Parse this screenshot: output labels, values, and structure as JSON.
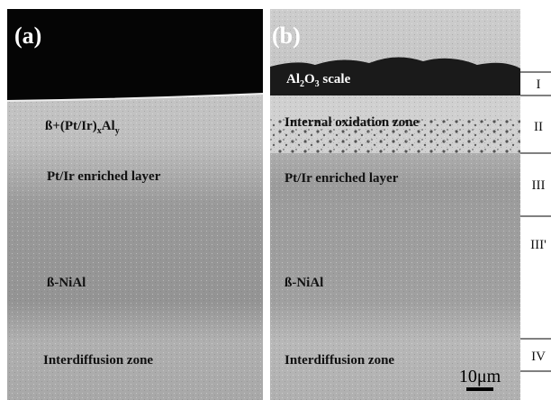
{
  "panels": [
    {
      "label": "(a)",
      "layers": [
        {
          "parts": [
            "ß+(Pt/Ir)",
            "x",
            "Al",
            "y"
          ]
        },
        {
          "parts": [
            "Pt/Ir enriched layer"
          ]
        },
        {
          "parts": [
            "ß-NiAl"
          ]
        },
        {
          "parts": [
            "Interdiffusion zone"
          ]
        }
      ]
    },
    {
      "label": "(b)",
      "layers": [
        {
          "parts": [
            "Al",
            "2",
            "O",
            "3",
            " scale"
          ]
        },
        {
          "parts": [
            "Internal oxidation zone"
          ]
        },
        {
          "parts": [
            "Pt/Ir enriched layer"
          ]
        },
        {
          "parts": [
            "ß-NiAl"
          ]
        },
        {
          "parts": [
            "Interdiffusion zone"
          ]
        }
      ],
      "scale_bar": "10μm"
    }
  ],
  "zones": [
    "I",
    "II",
    "III",
    "III'",
    "IV"
  ]
}
